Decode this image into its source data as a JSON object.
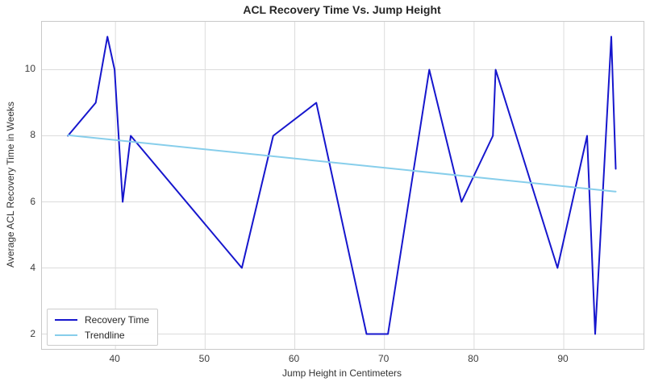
{
  "chart_data": {
    "type": "line",
    "title": "ACL Recovery Time Vs. Jump Height",
    "xlabel": "Jump Height in Centimeters",
    "ylabel": "Average ACL Recovery Time in Weeks",
    "xlim": [
      31.8,
      98.9
    ],
    "ylim": [
      1.55,
      11.45
    ],
    "x_ticks": [
      40,
      50,
      60,
      70,
      80,
      90
    ],
    "y_ticks": [
      2,
      4,
      6,
      8,
      10
    ],
    "grid": true,
    "legend_position": "lower-left",
    "colors": {
      "recovery_line": "#1616cd",
      "trendline": "#87ceeb",
      "grid_line": "#dcdcdc",
      "spine": "#c9c9c9",
      "text": "#262626"
    },
    "series": [
      {
        "name": "Recovery Time",
        "color": "#1616cd",
        "points": [
          [
            34.7,
            8
          ],
          [
            37.8,
            9
          ],
          [
            39.1,
            11
          ],
          [
            39.9,
            10
          ],
          [
            40.8,
            6
          ],
          [
            41.7,
            8
          ],
          [
            54.1,
            4
          ],
          [
            57.6,
            8
          ],
          [
            62.4,
            9
          ],
          [
            68.0,
            2
          ],
          [
            70.4,
            2
          ],
          [
            75.0,
            10
          ],
          [
            78.6,
            6
          ],
          [
            82.1,
            8
          ],
          [
            82.4,
            10
          ],
          [
            89.3,
            4
          ],
          [
            92.6,
            8
          ],
          [
            93.5,
            2
          ],
          [
            95.3,
            11
          ],
          [
            95.8,
            7
          ]
        ]
      },
      {
        "name": "Trendline",
        "color": "#87ceeb",
        "points": [
          [
            34.7,
            8.02
          ],
          [
            95.8,
            6.31
          ]
        ]
      }
    ]
  }
}
